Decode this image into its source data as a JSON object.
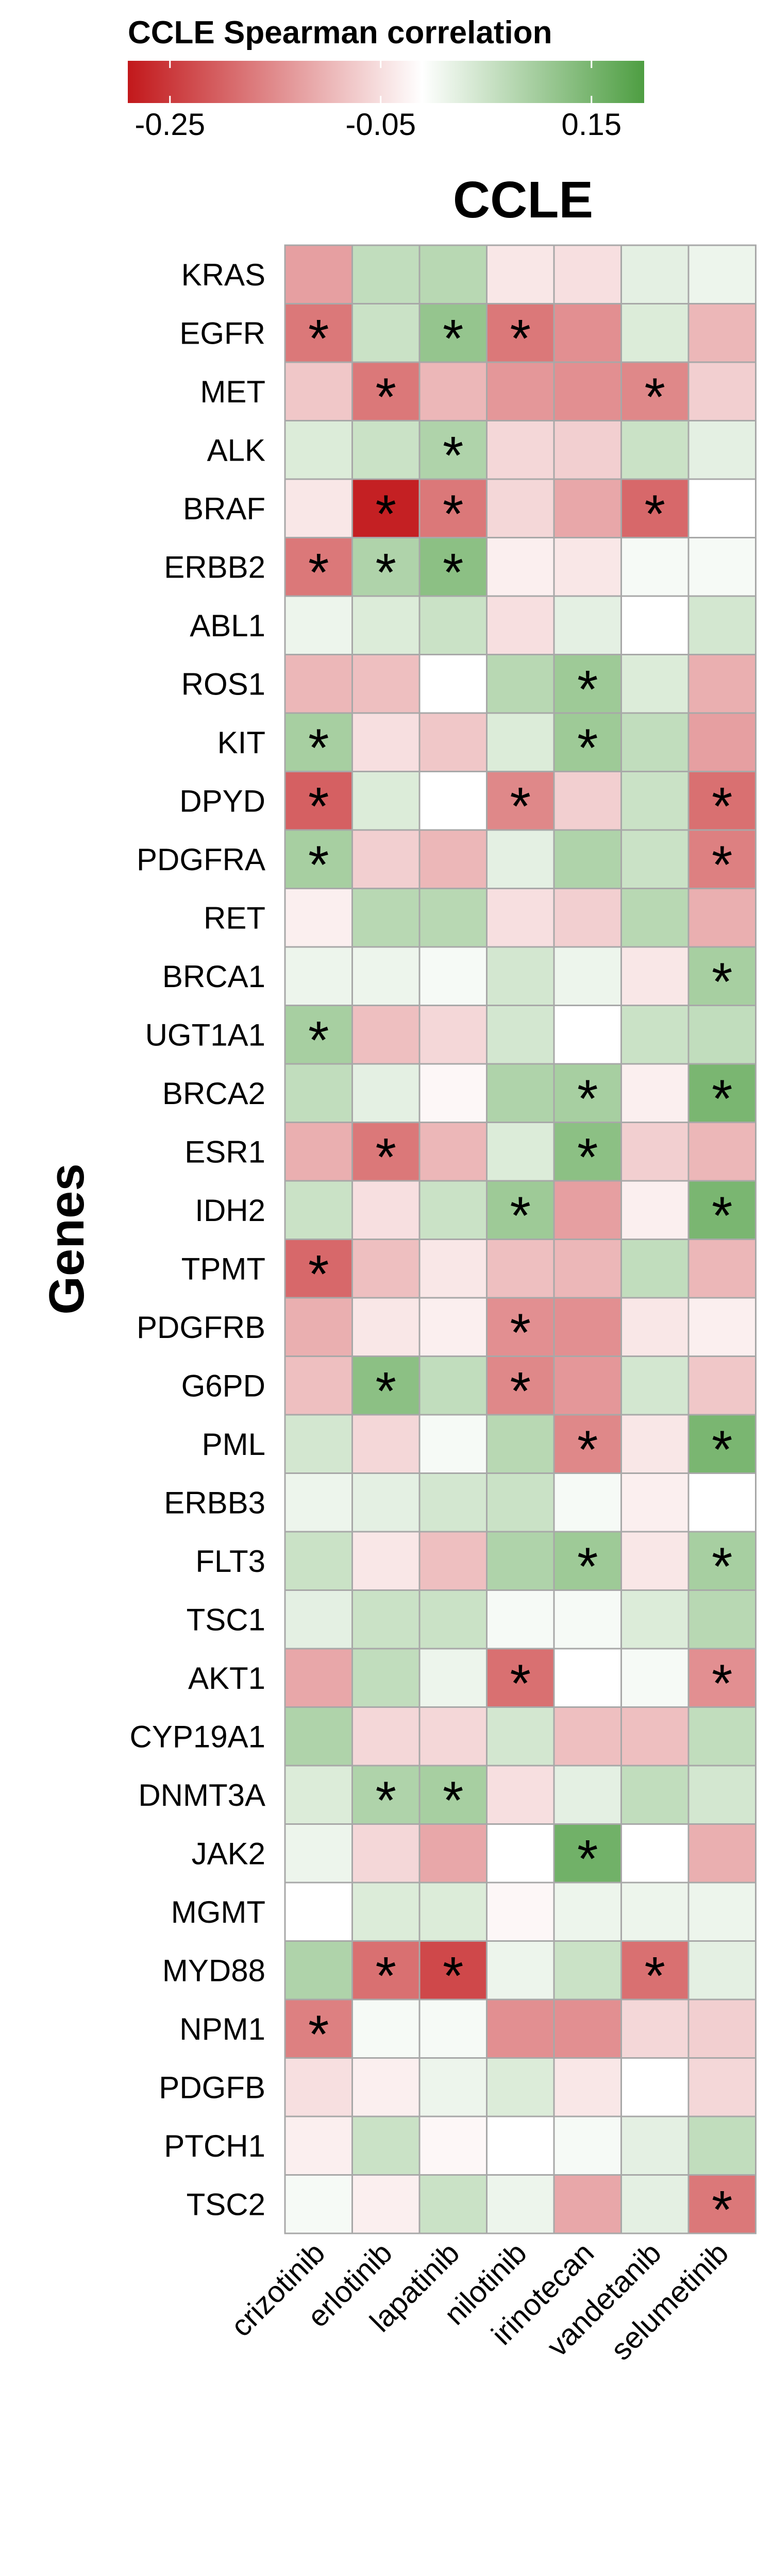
{
  "chart_data": {
    "type": "heatmap",
    "title": "CCLE",
    "ylabel": "Genes",
    "legend": {
      "title": "CCLE Spearman correlation",
      "ticks": [
        -0.25,
        -0.05,
        0.15
      ],
      "tick_labels": [
        "-0.25",
        "-0.05",
        "0.15"
      ],
      "range": [
        -0.29,
        0.2
      ],
      "placement": "top"
    },
    "colors": {
      "low": "#c2181b",
      "mid": "#ffffff",
      "high": "#4e9e42",
      "border": "#a8a8a8"
    },
    "columns": [
      "crizotinib",
      "erlotinib",
      "lapatinib",
      "nilotinib",
      "irinotecan",
      "vandetanib",
      "selumetinib"
    ],
    "rows": [
      "KRAS",
      "EGFR",
      "MET",
      "ALK",
      "BRAF",
      "ERBB2",
      "ABL1",
      "ROS1",
      "KIT",
      "DPYD",
      "PDGFRA",
      "RET",
      "BRCA1",
      "UGT1A1",
      "BRCA2",
      "ESR1",
      "IDH2",
      "TPMT",
      "PDGFRB",
      "G6PD",
      "PML",
      "ERBB3",
      "FLT3",
      "TSC1",
      "AKT1",
      "CYP19A1",
      "DNMT3A",
      "JAK2",
      "MGMT",
      "MYD88",
      "NPM1",
      "PDGFB",
      "PTCH1",
      "TSC2"
    ],
    "values": [
      [
        -0.12,
        0.07,
        0.08,
        -0.03,
        -0.04,
        0.03,
        0.02
      ],
      [
        -0.17,
        0.06,
        0.12,
        -0.17,
        -0.14,
        0.04,
        -0.09
      ],
      [
        -0.07,
        -0.17,
        -0.09,
        -0.13,
        -0.14,
        -0.15,
        -0.06
      ],
      [
        0.04,
        0.06,
        0.09,
        -0.05,
        -0.06,
        0.06,
        0.03
      ],
      [
        -0.03,
        -0.28,
        -0.17,
        -0.05,
        -0.11,
        -0.19,
        0.0
      ],
      [
        -0.17,
        0.09,
        0.13,
        -0.02,
        -0.03,
        0.01,
        0.01
      ],
      [
        0.02,
        0.04,
        0.06,
        -0.04,
        0.03,
        0.0,
        0.05
      ],
      [
        -0.09,
        -0.08,
        0.0,
        0.08,
        0.11,
        0.04,
        -0.1
      ],
      [
        0.1,
        -0.04,
        -0.07,
        0.04,
        0.11,
        0.07,
        -0.12
      ],
      [
        -0.2,
        0.04,
        0.0,
        -0.15,
        -0.06,
        0.06,
        -0.18
      ],
      [
        0.1,
        -0.06,
        -0.09,
        0.03,
        0.09,
        0.06,
        -0.16
      ],
      [
        -0.02,
        0.08,
        0.08,
        -0.04,
        -0.06,
        0.08,
        -0.1
      ],
      [
        0.02,
        0.02,
        0.01,
        0.05,
        0.02,
        -0.03,
        0.1
      ],
      [
        0.1,
        -0.08,
        -0.05,
        0.05,
        0.0,
        0.06,
        0.07
      ],
      [
        0.07,
        0.03,
        -0.01,
        0.09,
        0.1,
        -0.02,
        0.15
      ],
      [
        -0.1,
        -0.17,
        -0.09,
        0.04,
        0.13,
        -0.06,
        -0.09
      ],
      [
        0.06,
        -0.04,
        0.06,
        0.11,
        -0.12,
        -0.02,
        0.15
      ],
      [
        -0.19,
        -0.08,
        -0.03,
        -0.08,
        -0.09,
        0.07,
        -0.09
      ],
      [
        -0.1,
        -0.03,
        -0.02,
        -0.14,
        -0.14,
        -0.03,
        -0.02
      ],
      [
        -0.08,
        0.13,
        0.07,
        -0.15,
        -0.13,
        0.05,
        -0.07
      ],
      [
        0.05,
        -0.05,
        0.01,
        0.08,
        -0.15,
        -0.03,
        0.15
      ],
      [
        0.02,
        0.03,
        0.05,
        0.06,
        0.01,
        -0.02,
        0.0
      ],
      [
        0.06,
        -0.03,
        -0.08,
        0.09,
        0.11,
        -0.03,
        0.1
      ],
      [
        0.03,
        0.06,
        0.06,
        0.01,
        0.01,
        0.04,
        0.08
      ],
      [
        -0.11,
        0.07,
        0.02,
        -0.18,
        0.0,
        0.01,
        -0.14
      ],
      [
        0.09,
        -0.05,
        -0.05,
        0.05,
        -0.08,
        -0.08,
        0.07
      ],
      [
        0.04,
        0.09,
        0.1,
        -0.04,
        0.03,
        0.07,
        0.05
      ],
      [
        0.02,
        -0.05,
        -0.11,
        0.0,
        0.16,
        0.0,
        -0.1
      ],
      [
        0.0,
        0.04,
        0.04,
        -0.01,
        0.02,
        0.02,
        0.02
      ],
      [
        0.09,
        -0.18,
        -0.23,
        0.02,
        0.06,
        -0.18,
        0.03
      ],
      [
        -0.16,
        0.01,
        0.01,
        -0.14,
        -0.14,
        -0.05,
        -0.06
      ],
      [
        -0.04,
        -0.02,
        0.02,
        0.04,
        -0.03,
        0.0,
        -0.05
      ],
      [
        -0.02,
        0.06,
        -0.01,
        0.0,
        0.01,
        0.03,
        0.07
      ],
      [
        0.01,
        -0.02,
        0.06,
        0.02,
        -0.11,
        0.03,
        -0.17
      ]
    ],
    "significant": [
      [],
      [
        0,
        2,
        3
      ],
      [
        1,
        5
      ],
      [
        2
      ],
      [
        1,
        2,
        5
      ],
      [
        0,
        1,
        2
      ],
      [],
      [
        4
      ],
      [
        0,
        4
      ],
      [
        0,
        3,
        6
      ],
      [
        0,
        6
      ],
      [],
      [
        6
      ],
      [
        0
      ],
      [
        4,
        6
      ],
      [
        1,
        4
      ],
      [
        3,
        6
      ],
      [
        0
      ],
      [
        3
      ],
      [
        1,
        3
      ],
      [
        4,
        6
      ],
      [],
      [
        4,
        6
      ],
      [],
      [
        3,
        6
      ],
      [],
      [
        1,
        2
      ],
      [
        4
      ],
      [],
      [
        1,
        2,
        5
      ],
      [
        0
      ],
      [],
      [],
      [
        6
      ]
    ],
    "marker": "*"
  }
}
